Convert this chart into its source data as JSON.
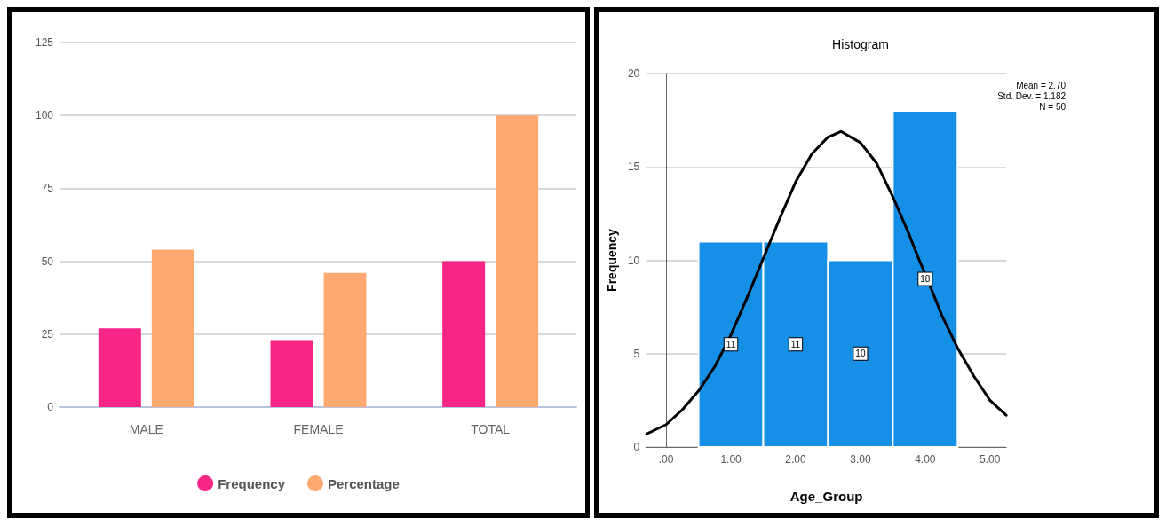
{
  "chart_data": [
    {
      "type": "bar",
      "categories": [
        "MALE",
        "FEMALE",
        "TOTAL"
      ],
      "series": [
        {
          "name": "Frequency",
          "color": "#f72585",
          "values": [
            27,
            23,
            50
          ]
        },
        {
          "name": "Percentage",
          "color": "#ffa872",
          "values": [
            54,
            46,
            100
          ]
        }
      ],
      "ylim": [
        0,
        125
      ],
      "yticks": [
        0,
        25,
        50,
        75,
        100,
        125
      ],
      "grid": "y",
      "legend": "bottom"
    },
    {
      "type": "histogram",
      "title": "Histogram",
      "xlabel": "Age_Group",
      "ylabel": "Frequency",
      "bins": [
        0.5,
        1.5,
        2.5,
        3.5,
        4.5
      ],
      "values": [
        11,
        11,
        10,
        18
      ],
      "color": "#1590e6",
      "value_labels": [
        "11",
        "11",
        "10",
        "18"
      ],
      "series": [
        {
          "type": "line",
          "color": "#000000",
          "x": [
            -0.3,
            0,
            0.25,
            0.5,
            0.75,
            1,
            1.25,
            1.5,
            1.75,
            2,
            2.25,
            2.5,
            2.7,
            3,
            3.25,
            3.5,
            3.75,
            3.875,
            4.125,
            4.25,
            4.5,
            4.75,
            5,
            5.25
          ],
          "values": [
            0.7,
            1.2,
            2.0,
            3.0,
            4.3,
            6.0,
            8.0,
            10.1,
            12.2,
            14.2,
            15.7,
            16.6,
            16.9,
            16.3,
            15.2,
            13.4,
            11.4,
            10.3,
            8.2,
            7.1,
            5.3,
            3.8,
            2.5,
            1.7
          ]
        }
      ],
      "marker": "none",
      "line_style": "solid",
      "xlim": [
        -0.3,
        5.25
      ],
      "xticks": [
        {
          "value": 0,
          "label": ".00"
        },
        {
          "value": 1,
          "label": "1.00"
        },
        {
          "value": 2,
          "label": "2.00"
        },
        {
          "value": 3,
          "label": "3.00"
        },
        {
          "value": 4,
          "label": "4.00"
        },
        {
          "value": 5,
          "label": "5.00"
        }
      ],
      "ylim": [
        0,
        20
      ],
      "yticks": [
        0,
        5,
        10,
        15,
        20
      ],
      "grid": "y",
      "annotations": [
        "Mean = 2.70",
        "Std. Dev. = 1.182",
        "N = 50"
      ]
    }
  ]
}
